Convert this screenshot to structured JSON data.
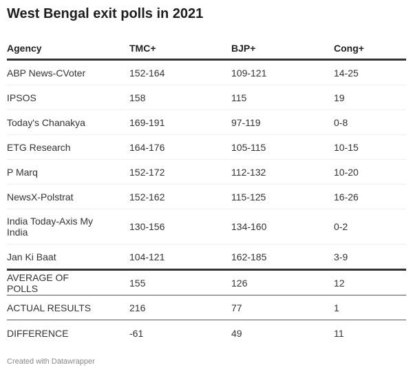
{
  "title": "West Bengal exit polls in 2021",
  "footer": "Created with Datawrapper",
  "chart_data": {
    "type": "table",
    "title": "West Bengal exit polls in 2021",
    "columns": [
      "Agency",
      "TMC+",
      "BJP+",
      "Cong+"
    ],
    "rows": [
      [
        "ABP News-CVoter",
        "152-164",
        "109-121",
        "14-25"
      ],
      [
        "IPSOS",
        "158",
        "115",
        "19"
      ],
      [
        "Today's Chanakya",
        "169-191",
        "97-119",
        "0-8"
      ],
      [
        "ETG Research",
        "164-176",
        "105-115",
        "10-15"
      ],
      [
        "P Marq",
        "152-172",
        "112-132",
        "10-20"
      ],
      [
        "NewsX-Polstrat",
        "152-162",
        "115-125",
        "16-26"
      ],
      [
        "India Today-Axis My India",
        "130-156",
        "134-160",
        "0-2"
      ],
      [
        "Jan Ki Baat",
        "104-121",
        "162-185",
        "3-9"
      ]
    ],
    "summary_rows": [
      [
        "AVERAGE OF POLLS",
        "155",
        "126",
        "12"
      ],
      [
        "ACTUAL RESULTS",
        "216",
        "77",
        "1"
      ],
      [
        "DIFFERENCE",
        "-61",
        "49",
        "11"
      ]
    ]
  }
}
